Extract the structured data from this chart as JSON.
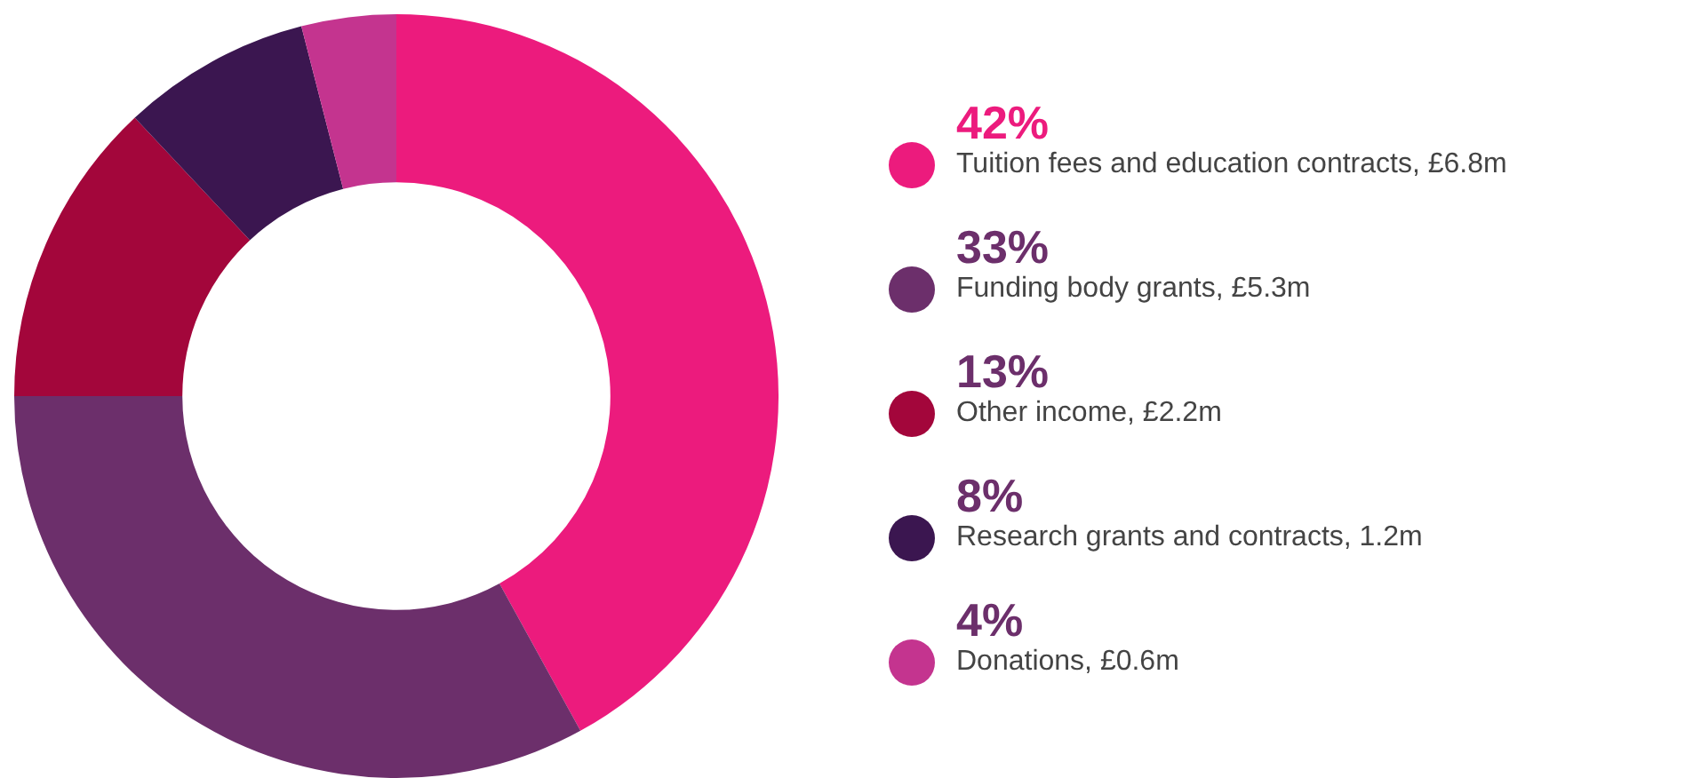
{
  "chart_data": {
    "type": "donut",
    "categories": [
      "Tuition fees and education contracts, £6.8m",
      "Funding body grants, £5.3m",
      "Other income, £2.2m",
      "Research grants and contracts, 1.2m",
      "Donations, £0.6m"
    ],
    "values": [
      42,
      33,
      13,
      8,
      4
    ],
    "value_labels": [
      "42%",
      "33%",
      "13%",
      "8%",
      "4%"
    ],
    "colors": [
      "#ec1b7d",
      "#6c2f6b",
      "#a3063b",
      "#3b1650",
      "#c4348f"
    ],
    "legend": "right"
  }
}
